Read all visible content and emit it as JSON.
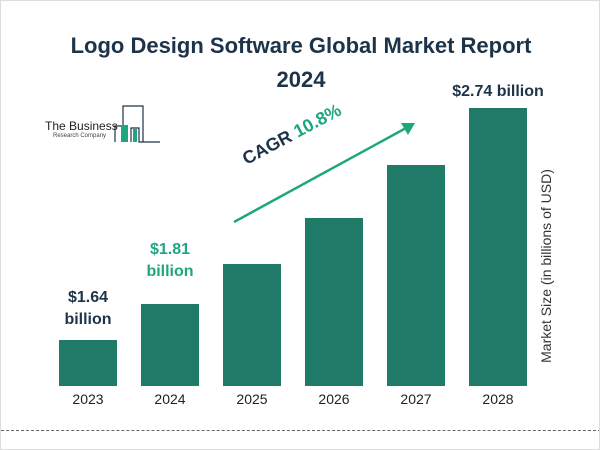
{
  "chart_data": {
    "type": "bar",
    "title": "Logo Design Software Global Market Report 2024",
    "title_lines": [
      "Logo Design Software Global Market Report",
      "2024"
    ],
    "categories": [
      "2023",
      "2024",
      "2025",
      "2026",
      "2027",
      "2028"
    ],
    "values": [
      1.64,
      1.81,
      2.0,
      2.22,
      2.47,
      2.74
    ],
    "data_labels": [
      {
        "category": "2023",
        "line1": "$1.64",
        "line2": "billion",
        "color": "#1d3349"
      },
      {
        "category": "2024",
        "line1": "$1.81",
        "line2": "billion",
        "color": "#1ea67f"
      },
      {
        "category": "2028",
        "line1": "$2.74 billion",
        "line2": "",
        "color": "#1d3349"
      }
    ],
    "ylabel": "Market Size (in billions of USD)",
    "xlabel": "",
    "ylim": [
      1.42,
      2.74
    ],
    "grid": false,
    "bar_color": "#1f7a68",
    "annotation": {
      "prefix": "CAGR ",
      "value": "10.8%",
      "arrow_color": "#1ea67f"
    }
  },
  "logo": {
    "line1": "The Business",
    "line2": "Research Company"
  }
}
